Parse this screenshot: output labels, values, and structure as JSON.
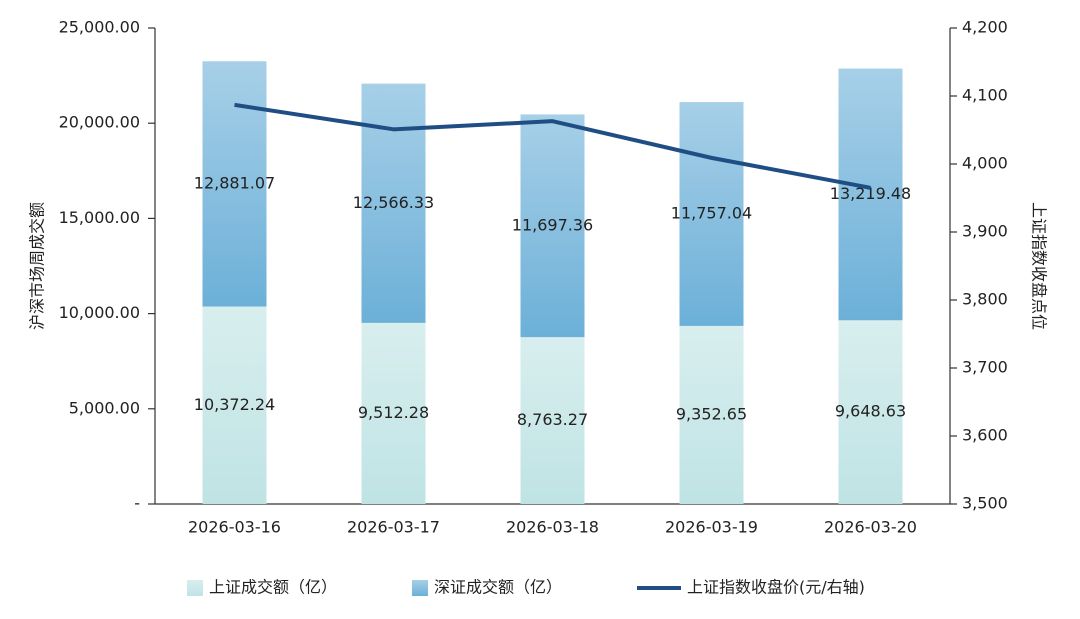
{
  "chart_data": {
    "type": "bar",
    "y_label": "沪深市场周成交额",
    "y2_label": "上证指数收盘点位",
    "categories": [
      "2026-03-16",
      "2026-03-17",
      "2026-03-18",
      "2026-03-19",
      "2026-03-20"
    ],
    "series": [
      {
        "name": "上证成交额（亿）",
        "color": "#bfe3e4",
        "values": [
          10372.24,
          9512.28,
          8763.27,
          9352.65,
          9648.63
        ],
        "value_labels": [
          "10,372.24",
          "9,512.28",
          "8,763.27",
          "9,352.65",
          "9,648.63"
        ]
      },
      {
        "name": "深证成交额（亿）",
        "color": "#6cb0d8",
        "values": [
          12881.07,
          12566.33,
          11697.36,
          11757.04,
          13219.48
        ],
        "value_labels": [
          "12,881.07",
          "12,566.33",
          "11,697.36",
          "11,757.04",
          "13,219.48"
        ]
      },
      {
        "name": "上证指数收盘价(元/右轴)",
        "type": "line",
        "axis": "y2",
        "color": "#1f4e85",
        "values": [
          4087,
          4051,
          4063,
          4009,
          3965
        ]
      }
    ],
    "stacked": true,
    "ylim": [
      0,
      25000
    ],
    "yticks": [
      {
        "value": 0,
        "label": "-"
      },
      {
        "value": 5000,
        "label": "5,000.00"
      },
      {
        "value": 10000,
        "label": "10,000.00"
      },
      {
        "value": 15000,
        "label": "15,000.00"
      },
      {
        "value": 20000,
        "label": "20,000.00"
      },
      {
        "value": 25000,
        "label": "25,000.00"
      }
    ],
    "y2lim": [
      3500,
      4200
    ],
    "y2ticks": [
      {
        "value": 3500,
        "label": "3,500"
      },
      {
        "value": 3600,
        "label": "3,600"
      },
      {
        "value": 3700,
        "label": "3,700"
      },
      {
        "value": 3800,
        "label": "3,800"
      },
      {
        "value": 3900,
        "label": "3,900"
      },
      {
        "value": 4000,
        "label": "4,000"
      },
      {
        "value": 4100,
        "label": "4,100"
      },
      {
        "value": 4200,
        "label": "4,200"
      }
    ],
    "grid": false,
    "legend": "bottom"
  }
}
